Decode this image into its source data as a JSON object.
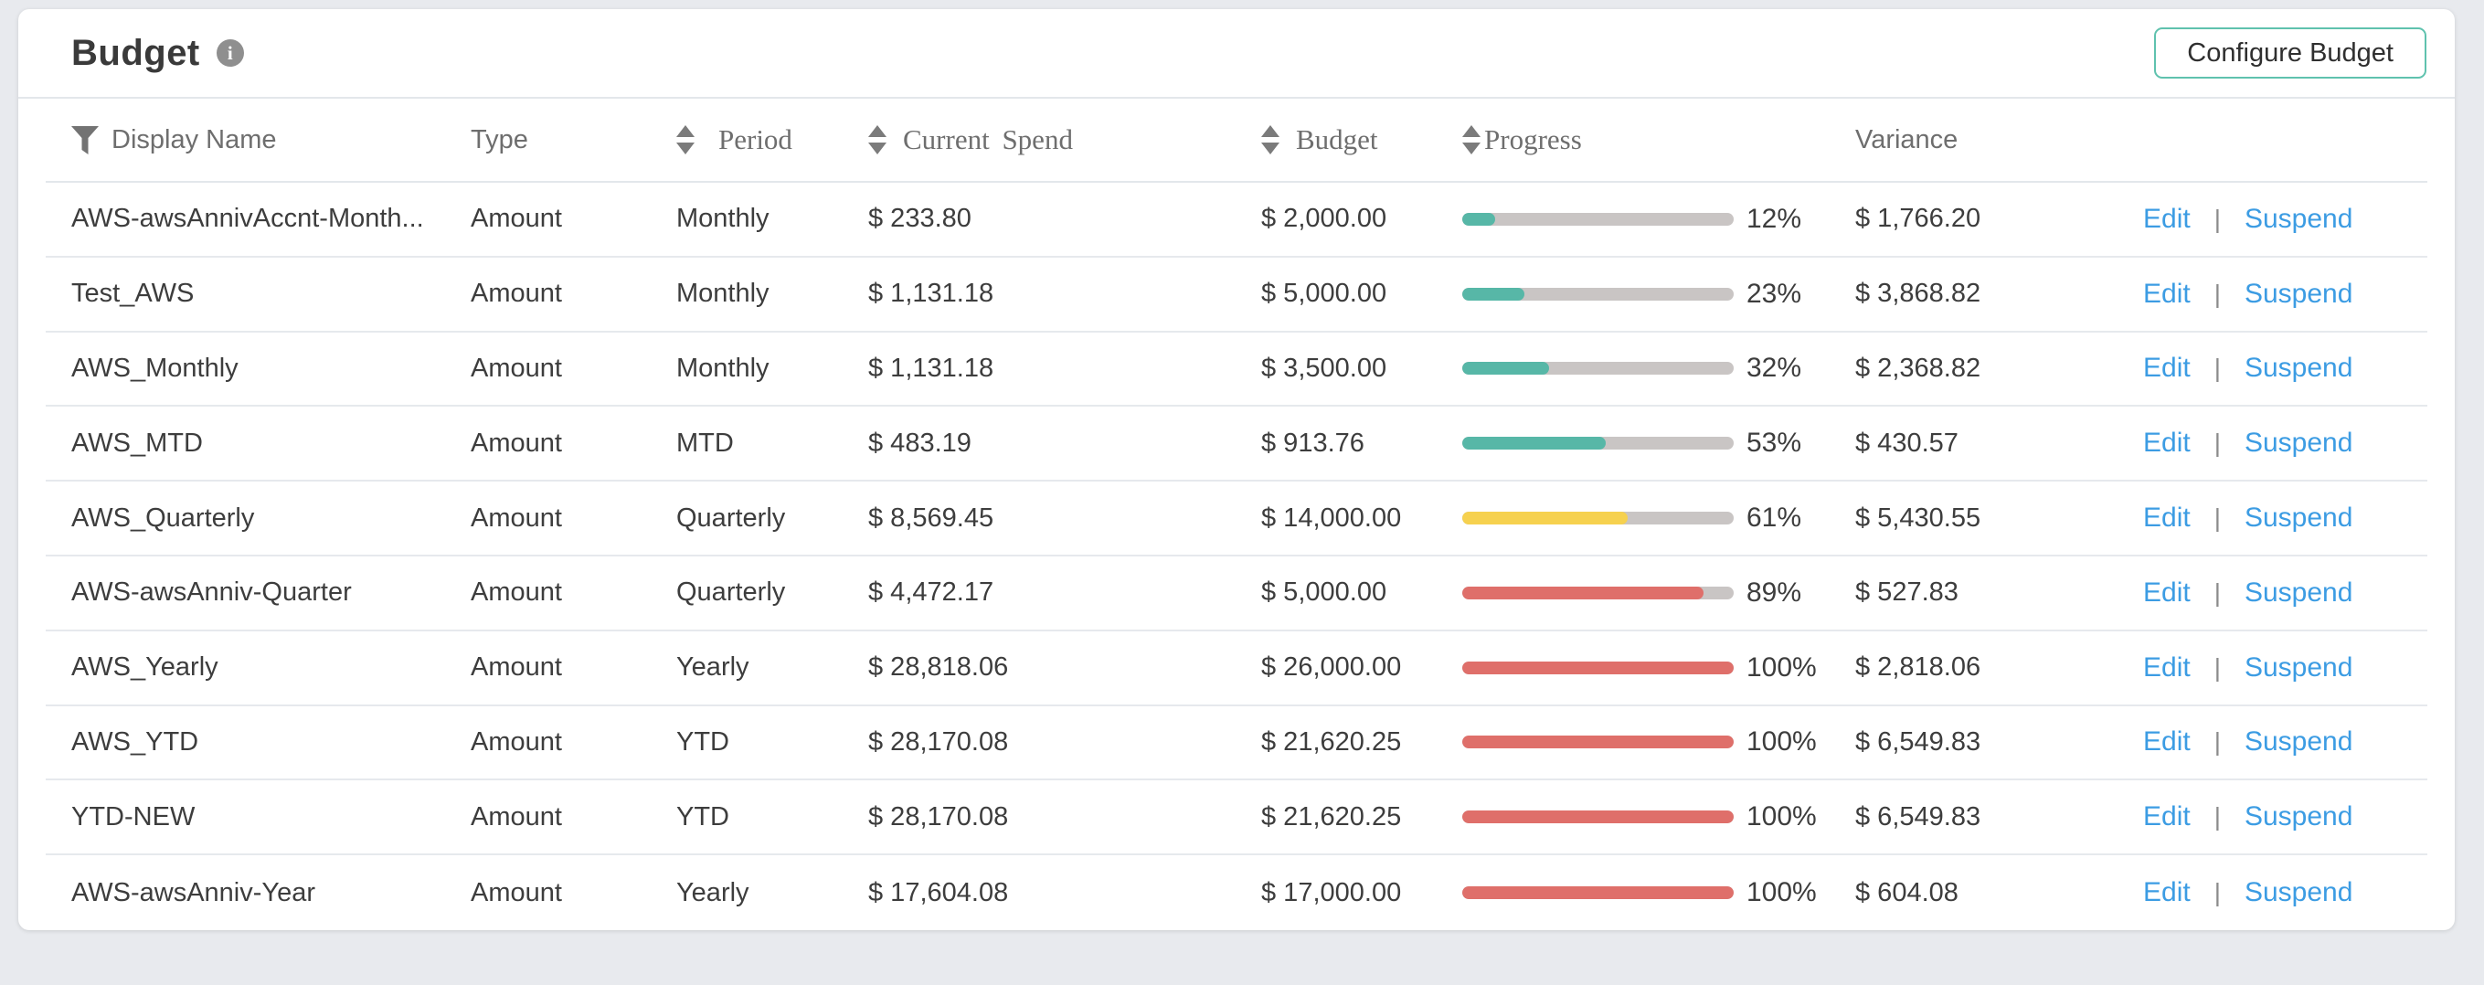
{
  "header": {
    "title": "Budget",
    "configure_button_label": "Configure Budget"
  },
  "table": {
    "columns": [
      {
        "label": "Display Name",
        "has_filter": true,
        "sortable": false
      },
      {
        "label": "Type",
        "has_filter": false,
        "sortable": false
      },
      {
        "label": "Period",
        "has_filter": false,
        "sortable": true
      },
      {
        "label": "Current Spend",
        "has_filter": false,
        "sortable": true
      },
      {
        "label": "Budget",
        "has_filter": false,
        "sortable": true
      },
      {
        "label": "Progress",
        "has_filter": false,
        "sortable": true
      },
      {
        "label": "Variance",
        "has_filter": false,
        "sortable": false
      }
    ],
    "actions": {
      "edit_label": "Edit",
      "separator": "|",
      "suspend_label": "Suspend"
    },
    "rows": [
      {
        "display_name": "AWS-awsAnnivAccnt-Month...",
        "type": "Amount",
        "period": "Monthly",
        "current_spend": "$ 233.80",
        "budget": "$ 2,000.00",
        "progress_pct": 12,
        "progress_label": "12%",
        "progress_color": "#57b7a7",
        "variance": "$ 1,766.20"
      },
      {
        "display_name": "Test_AWS",
        "type": "Amount",
        "period": "Monthly",
        "current_spend": "$ 1,131.18",
        "budget": "$ 5,000.00",
        "progress_pct": 23,
        "progress_label": "23%",
        "progress_color": "#57b7a7",
        "variance": "$ 3,868.82"
      },
      {
        "display_name": "AWS_Monthly",
        "type": "Amount",
        "period": "Monthly",
        "current_spend": "$ 1,131.18",
        "budget": "$ 3,500.00",
        "progress_pct": 32,
        "progress_label": "32%",
        "progress_color": "#57b7a7",
        "variance": "$ 2,368.82"
      },
      {
        "display_name": "AWS_MTD",
        "type": "Amount",
        "period": "MTD",
        "current_spend": "$ 483.19",
        "budget": "$ 913.76",
        "progress_pct": 53,
        "progress_label": "53%",
        "progress_color": "#57b7a7",
        "variance": "$ 430.57"
      },
      {
        "display_name": "AWS_Quarterly",
        "type": "Amount",
        "period": "Quarterly",
        "current_spend": "$ 8,569.45",
        "budget": "$ 14,000.00",
        "progress_pct": 61,
        "progress_label": "61%",
        "progress_color": "#f6d14f",
        "variance": "$ 5,430.55"
      },
      {
        "display_name": "AWS-awsAnniv-Quarter",
        "type": "Amount",
        "period": "Quarterly",
        "current_spend": "$ 4,472.17",
        "budget": "$ 5,000.00",
        "progress_pct": 89,
        "progress_label": "89%",
        "progress_color": "#df6f6a",
        "variance": "$ 527.83"
      },
      {
        "display_name": "AWS_Yearly",
        "type": "Amount",
        "period": "Yearly",
        "current_spend": "$ 28,818.06",
        "budget": "$ 26,000.00",
        "progress_pct": 100,
        "progress_label": "100%",
        "progress_color": "#df6f6a",
        "variance": "$ 2,818.06"
      },
      {
        "display_name": "AWS_YTD",
        "type": "Amount",
        "period": "YTD",
        "current_spend": "$ 28,170.08",
        "budget": "$ 21,620.25",
        "progress_pct": 100,
        "progress_label": "100%",
        "progress_color": "#df6f6a",
        "variance": "$ 6,549.83"
      },
      {
        "display_name": "YTD-NEW",
        "type": "Amount",
        "period": "YTD",
        "current_spend": "$ 28,170.08",
        "budget": "$ 21,620.25",
        "progress_pct": 100,
        "progress_label": "100%",
        "progress_color": "#df6f6a",
        "variance": "$ 6,549.83"
      },
      {
        "display_name": "AWS-awsAnniv-Year",
        "type": "Amount",
        "period": "Yearly",
        "current_spend": "$ 17,604.08",
        "budget": "$ 17,000.00",
        "progress_pct": 100,
        "progress_label": "100%",
        "progress_color": "#df6f6a",
        "variance": "$ 604.08"
      }
    ]
  },
  "colors": {
    "page_background": "#e8eaee",
    "card_background": "#ffffff",
    "progress_low_teal": "#57b7a7",
    "progress_mid_yellow": "#f6d14f",
    "progress_high_red": "#df6f6a",
    "progress_track": "#c9c5c4",
    "link_blue": "#3c9ce3",
    "button_border_teal": "#5fc2ae"
  }
}
